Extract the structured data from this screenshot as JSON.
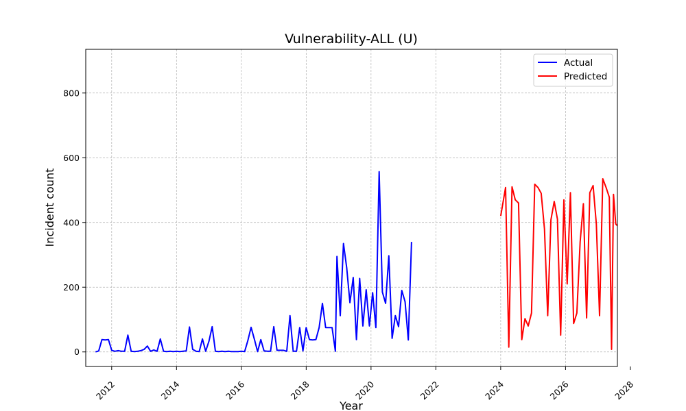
{
  "chart_data": {
    "type": "line",
    "title": "Vulnerability-ALL (U)",
    "xlabel": "Year",
    "ylabel": "Incident count",
    "xlim": [
      2011.2,
      2027.6
    ],
    "ylim": [
      -45,
      935
    ],
    "grid": true,
    "legend_position": "top-right",
    "x_ticks": [
      2012,
      2014,
      2016,
      2018,
      2020,
      2022,
      2024,
      2026,
      2028
    ],
    "x_tick_labels": [
      "2012",
      "2014",
      "2016",
      "2018",
      "2020",
      "2022",
      "2024",
      "2026",
      "2028"
    ],
    "y_ticks": [
      0,
      200,
      400,
      600,
      800
    ],
    "y_tick_labels": [
      "0",
      "200",
      "400",
      "600",
      "800"
    ],
    "series": [
      {
        "name": "Actual",
        "color": "#0000ff",
        "points": [
          [
            2011.5,
            0
          ],
          [
            2011.6,
            3
          ],
          [
            2011.7,
            38
          ],
          [
            2011.8,
            37
          ],
          [
            2011.9,
            38
          ],
          [
            2012.0,
            5
          ],
          [
            2012.1,
            2
          ],
          [
            2012.2,
            4
          ],
          [
            2012.3,
            2
          ],
          [
            2012.4,
            2
          ],
          [
            2012.5,
            52
          ],
          [
            2012.6,
            2
          ],
          [
            2012.7,
            1
          ],
          [
            2012.8,
            2
          ],
          [
            2012.9,
            4
          ],
          [
            2013.0,
            8
          ],
          [
            2013.1,
            18
          ],
          [
            2013.2,
            2
          ],
          [
            2013.3,
            6
          ],
          [
            2013.4,
            2
          ],
          [
            2013.5,
            40
          ],
          [
            2013.6,
            2
          ],
          [
            2013.7,
            1
          ],
          [
            2013.8,
            2
          ],
          [
            2013.9,
            1
          ],
          [
            2014.0,
            2
          ],
          [
            2014.1,
            1
          ],
          [
            2014.2,
            2
          ],
          [
            2014.3,
            3
          ],
          [
            2014.4,
            77
          ],
          [
            2014.5,
            8
          ],
          [
            2014.6,
            2
          ],
          [
            2014.7,
            1
          ],
          [
            2014.8,
            40
          ],
          [
            2014.9,
            2
          ],
          [
            2015.0,
            33
          ],
          [
            2015.1,
            78
          ],
          [
            2015.2,
            2
          ],
          [
            2015.3,
            1
          ],
          [
            2015.4,
            2
          ],
          [
            2015.5,
            1
          ],
          [
            2015.6,
            2
          ],
          [
            2015.7,
            1
          ],
          [
            2015.8,
            1
          ],
          [
            2015.9,
            1
          ],
          [
            2016.0,
            2
          ],
          [
            2016.1,
            1
          ],
          [
            2016.2,
            35
          ],
          [
            2016.3,
            76
          ],
          [
            2016.4,
            40
          ],
          [
            2016.5,
            1
          ],
          [
            2016.6,
            38
          ],
          [
            2016.7,
            3
          ],
          [
            2016.8,
            2
          ],
          [
            2016.9,
            2
          ],
          [
            2017.0,
            78
          ],
          [
            2017.1,
            5
          ],
          [
            2017.2,
            5
          ],
          [
            2017.3,
            5
          ],
          [
            2017.4,
            2
          ],
          [
            2017.5,
            112
          ],
          [
            2017.6,
            2
          ],
          [
            2017.7,
            2
          ],
          [
            2017.8,
            75
          ],
          [
            2017.9,
            3
          ],
          [
            2018.0,
            75
          ],
          [
            2018.1,
            38
          ],
          [
            2018.2,
            37
          ],
          [
            2018.3,
            38
          ],
          [
            2018.4,
            75
          ],
          [
            2018.5,
            150
          ],
          [
            2018.6,
            75
          ],
          [
            2018.7,
            75
          ],
          [
            2018.8,
            75
          ],
          [
            2018.9,
            2
          ],
          [
            2018.95,
            295
          ],
          [
            2019.05,
            112
          ],
          [
            2019.15,
            335
          ],
          [
            2019.25,
            260
          ],
          [
            2019.35,
            152
          ],
          [
            2019.45,
            230
          ],
          [
            2019.55,
            38
          ],
          [
            2019.65,
            227
          ],
          [
            2019.75,
            80
          ],
          [
            2019.85,
            192
          ],
          [
            2019.95,
            80
          ],
          [
            2020.05,
            183
          ],
          [
            2020.15,
            75
          ],
          [
            2020.25,
            557
          ],
          [
            2020.35,
            185
          ],
          [
            2020.45,
            150
          ],
          [
            2020.55,
            297
          ],
          [
            2020.65,
            42
          ],
          [
            2020.75,
            112
          ],
          [
            2020.85,
            78
          ],
          [
            2020.95,
            190
          ],
          [
            2021.05,
            155
          ],
          [
            2021.15,
            37
          ],
          [
            2021.25,
            340
          ]
        ]
      },
      {
        "name": "Predicted",
        "color": "#ff0000",
        "points": [
          [
            2024.0,
            420
          ],
          [
            2024.15,
            508
          ],
          [
            2024.25,
            15
          ],
          [
            2024.35,
            510
          ],
          [
            2024.45,
            470
          ],
          [
            2024.55,
            460
          ],
          [
            2024.65,
            38
          ],
          [
            2024.75,
            103
          ],
          [
            2024.85,
            80
          ],
          [
            2024.95,
            120
          ],
          [
            2025.05,
            518
          ],
          [
            2025.15,
            508
          ],
          [
            2025.25,
            490
          ],
          [
            2025.35,
            380
          ],
          [
            2025.45,
            112
          ],
          [
            2025.55,
            408
          ],
          [
            2025.65,
            465
          ],
          [
            2025.75,
            410
          ],
          [
            2025.85,
            52
          ],
          [
            2025.95,
            470
          ],
          [
            2026.05,
            210
          ],
          [
            2026.15,
            492
          ],
          [
            2026.25,
            88
          ],
          [
            2026.35,
            120
          ],
          [
            2026.45,
            340
          ],
          [
            2026.55,
            458
          ],
          [
            2026.65,
            105
          ],
          [
            2026.75,
            492
          ],
          [
            2026.85,
            514
          ],
          [
            2026.95,
            395
          ],
          [
            2027.05,
            112
          ],
          [
            2027.15,
            535
          ],
          [
            2027.25,
            508
          ],
          [
            2027.35,
            478
          ],
          [
            2027.42,
            8
          ],
          [
            2027.48,
            487
          ],
          [
            2027.55,
            395
          ],
          [
            2027.6,
            390
          ]
        ]
      }
    ]
  }
}
